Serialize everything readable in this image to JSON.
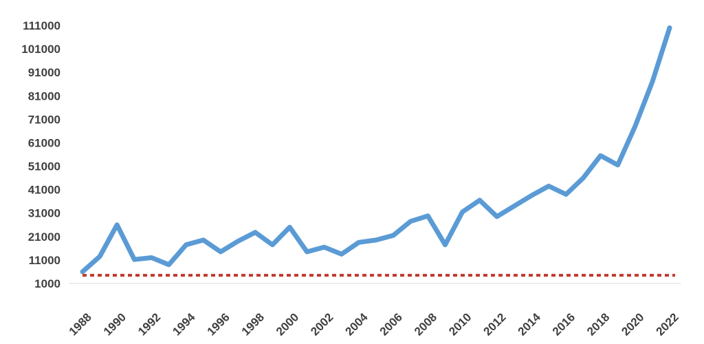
{
  "chart_data": {
    "type": "line",
    "title": "",
    "xlabel": "",
    "ylabel": "",
    "x": [
      1988,
      1989,
      1990,
      1991,
      1992,
      1993,
      1994,
      1995,
      1996,
      1997,
      1998,
      1999,
      2000,
      2001,
      2002,
      2003,
      2004,
      2005,
      2006,
      2007,
      2008,
      2009,
      2010,
      2011,
      2012,
      2013,
      2014,
      2015,
      2016,
      2017,
      2018,
      2019,
      2020,
      2021,
      2022
    ],
    "xticks": [
      "1988",
      "1990",
      "1992",
      "1994",
      "1996",
      "1998",
      "2000",
      "2002",
      "2004",
      "2006",
      "2008",
      "2010",
      "2012",
      "2014",
      "2016",
      "2018",
      "2020",
      "2022"
    ],
    "yticks": [
      "1000",
      "11000",
      "21000",
      "31000",
      "41000",
      "51000",
      "61000",
      "71000",
      "81000",
      "91000",
      "101000",
      "111000"
    ],
    "ylim": [
      1000,
      111000
    ],
    "grid": false,
    "series": [
      {
        "color": "#5b9bd5",
        "values": [
          6000,
          12500,
          26000,
          11200,
          12000,
          9000,
          17500,
          19500,
          14500,
          19000,
          22800,
          17500,
          25000,
          14500,
          16500,
          13500,
          18500,
          19500,
          21500,
          27500,
          29800,
          17500,
          31500,
          36500,
          29500,
          34000,
          38500,
          42500,
          39000,
          46000,
          55500,
          51500,
          68000,
          87000,
          110000
        ]
      },
      {
        "color": "#c0392b",
        "dashed": true,
        "values": [
          4500,
          4500,
          4500,
          4500,
          4500,
          4500,
          4500,
          4500,
          4500,
          4500,
          4500,
          4500,
          4500,
          4500,
          4500,
          4500,
          4500,
          4500,
          4500,
          4500,
          4500,
          4500,
          4500,
          4500,
          4500,
          4500,
          4500,
          4500,
          4500,
          4500,
          4500,
          4500,
          4500,
          4500,
          4500
        ]
      }
    ]
  }
}
